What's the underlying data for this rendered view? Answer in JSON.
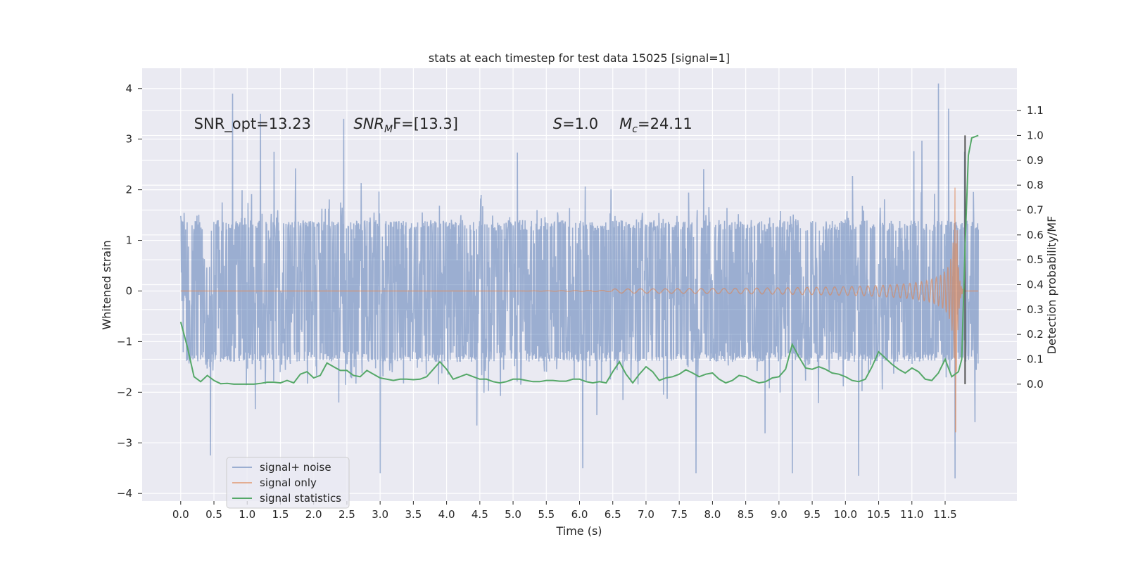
{
  "chart_data": {
    "type": "line",
    "title": "stats at each timestep for test data 15025 [signal=1]",
    "xlabel": "Time (s)",
    "ylabel": "Whitened strain",
    "y2label": "Detection probability/MF",
    "xlim": [
      -0.58,
      12.58
    ],
    "ylim": [
      -4.15,
      4.4
    ],
    "y2lim": [
      -0.47,
      1.27
    ],
    "xticks": [
      0.0,
      0.5,
      1.0,
      1.5,
      2.0,
      2.5,
      3.0,
      3.5,
      4.0,
      4.5,
      5.0,
      5.5,
      6.0,
      6.5,
      7.0,
      7.5,
      8.0,
      8.5,
      9.0,
      9.5,
      10.0,
      10.5,
      11.0,
      11.5
    ],
    "xtick_labels": [
      "0.0",
      "0.5",
      "1.0",
      "1.5",
      "2.0",
      "2.5",
      "3.0",
      "3.5",
      "4.0",
      "4.5",
      "5.0",
      "5.5",
      "6.0",
      "6.5",
      "7.0",
      "7.5",
      "8.0",
      "8.5",
      "9.0",
      "9.5",
      "10.0",
      "10.5",
      "11.0",
      "11.5"
    ],
    "yticks": [
      -4,
      -3,
      -2,
      -1,
      0,
      1,
      2,
      3,
      4
    ],
    "ytick_labels": [
      "−4",
      "−3",
      "−2",
      "−1",
      "0",
      "1",
      "2",
      "3",
      "4"
    ],
    "y2ticks": [
      0.0,
      0.1,
      0.2,
      0.3,
      0.4,
      0.5,
      0.6,
      0.7,
      0.8,
      0.9,
      1.0,
      1.1
    ],
    "y2tick_labels": [
      "0.0",
      "0.1",
      "0.2",
      "0.3",
      "0.4",
      "0.5",
      "0.6",
      "0.7",
      "0.8",
      "0.9",
      "1.0",
      "1.1"
    ],
    "grid": true,
    "legend_position": "lower-left",
    "annotations": [
      {
        "text": "SNR_opt=13.23",
        "x": 0.2,
        "y": 3.3
      },
      {
        "text": "SNR_MF=[13.3]",
        "x": 2.6,
        "y": 3.3
      },
      {
        "text": "S=1.0",
        "x": 5.6,
        "y": 3.3
      },
      {
        "text": "M_c=24.11",
        "x": 6.6,
        "y": 3.3
      }
    ],
    "vertical_line": {
      "x": 11.8,
      "y2_range": [
        0.0,
        1.0
      ],
      "color": "#555555"
    },
    "series": [
      {
        "name": "signal+ noise",
        "color": "#4c72b0",
        "opacity": 0.5,
        "description_values": "white noise, core band about ±1.4, peaks to about ±3.9",
        "x_range": [
          0.0,
          12.0
        ],
        "core_amplitude": 1.4,
        "peaks": [
          {
            "x": 0.78,
            "y": 3.9
          },
          {
            "x": 11.4,
            "y": 4.1
          },
          {
            "x": 1.2,
            "y": 3.5
          },
          {
            "x": 2.45,
            "y": 3.4
          },
          {
            "x": 11.55,
            "y": 3.6
          },
          {
            "x": 9.2,
            "y": -3.6
          },
          {
            "x": 7.75,
            "y": -3.6
          },
          {
            "x": 3.0,
            "y": -3.6
          },
          {
            "x": 11.65,
            "y": -3.7
          },
          {
            "x": 0.45,
            "y": -3.25
          },
          {
            "x": 6.05,
            "y": -3.5
          },
          {
            "x": 10.2,
            "y": -3.65
          }
        ]
      },
      {
        "name": "signal only",
        "color": "#dd8452",
        "opacity": 0.6,
        "chirp": {
          "t_merge": 11.66,
          "peak_amplitude": 2.8,
          "x_start": 0.0,
          "x_end": 12.0
        }
      },
      {
        "name": "signal statistics",
        "color": "#55a868",
        "axis": "y2",
        "x": [
          0.0,
          0.1,
          0.2,
          0.3,
          0.4,
          0.5,
          0.6,
          0.7,
          0.8,
          0.9,
          1.0,
          1.1,
          1.2,
          1.3,
          1.4,
          1.5,
          1.6,
          1.7,
          1.8,
          1.9,
          2.0,
          2.1,
          2.2,
          2.3,
          2.4,
          2.5,
          2.6,
          2.7,
          2.8,
          2.9,
          3.0,
          3.1,
          3.2,
          3.3,
          3.4,
          3.5,
          3.6,
          3.7,
          3.8,
          3.9,
          4.0,
          4.1,
          4.2,
          4.3,
          4.4,
          4.5,
          4.6,
          4.7,
          4.8,
          4.9,
          5.0,
          5.1,
          5.2,
          5.3,
          5.4,
          5.5,
          5.6,
          5.7,
          5.8,
          5.9,
          6.0,
          6.1,
          6.2,
          6.3,
          6.4,
          6.5,
          6.6,
          6.7,
          6.8,
          6.9,
          7.0,
          7.1,
          7.2,
          7.3,
          7.4,
          7.5,
          7.6,
          7.7,
          7.8,
          7.9,
          8.0,
          8.1,
          8.2,
          8.3,
          8.4,
          8.5,
          8.6,
          8.7,
          8.8,
          8.9,
          9.0,
          9.1,
          9.2,
          9.3,
          9.4,
          9.5,
          9.6,
          9.7,
          9.8,
          9.9,
          10.0,
          10.1,
          10.2,
          10.3,
          10.4,
          10.5,
          10.6,
          10.7,
          10.8,
          10.9,
          11.0,
          11.1,
          11.2,
          11.3,
          11.4,
          11.5,
          11.6,
          11.7,
          11.75,
          11.8,
          11.85,
          11.9,
          12.0
        ],
        "values": [
          0.25,
          0.15,
          0.03,
          0.01,
          0.035,
          0.015,
          0.002,
          0.003,
          0.0,
          0.0,
          0.0,
          0.0,
          0.003,
          0.008,
          0.008,
          0.005,
          0.015,
          0.005,
          0.04,
          0.05,
          0.025,
          0.035,
          0.085,
          0.07,
          0.055,
          0.055,
          0.035,
          0.03,
          0.055,
          0.04,
          0.025,
          0.02,
          0.015,
          0.02,
          0.02,
          0.018,
          0.02,
          0.03,
          0.06,
          0.09,
          0.06,
          0.02,
          0.03,
          0.04,
          0.03,
          0.02,
          0.02,
          0.01,
          0.005,
          0.01,
          0.02,
          0.02,
          0.015,
          0.01,
          0.01,
          0.015,
          0.015,
          0.012,
          0.012,
          0.02,
          0.02,
          0.01,
          0.005,
          0.01,
          0.005,
          0.05,
          0.09,
          0.04,
          0.005,
          0.04,
          0.07,
          0.05,
          0.015,
          0.025,
          0.03,
          0.04,
          0.058,
          0.045,
          0.03,
          0.04,
          0.045,
          0.02,
          0.005,
          0.015,
          0.035,
          0.03,
          0.015,
          0.005,
          0.01,
          0.025,
          0.03,
          0.06,
          0.16,
          0.11,
          0.065,
          0.06,
          0.07,
          0.06,
          0.045,
          0.04,
          0.03,
          0.015,
          0.01,
          0.02,
          0.07,
          0.13,
          0.105,
          0.08,
          0.06,
          0.045,
          0.065,
          0.05,
          0.02,
          0.015,
          0.045,
          0.1,
          0.03,
          0.05,
          0.1,
          0.55,
          0.92,
          0.99,
          1.0
        ]
      }
    ]
  }
}
